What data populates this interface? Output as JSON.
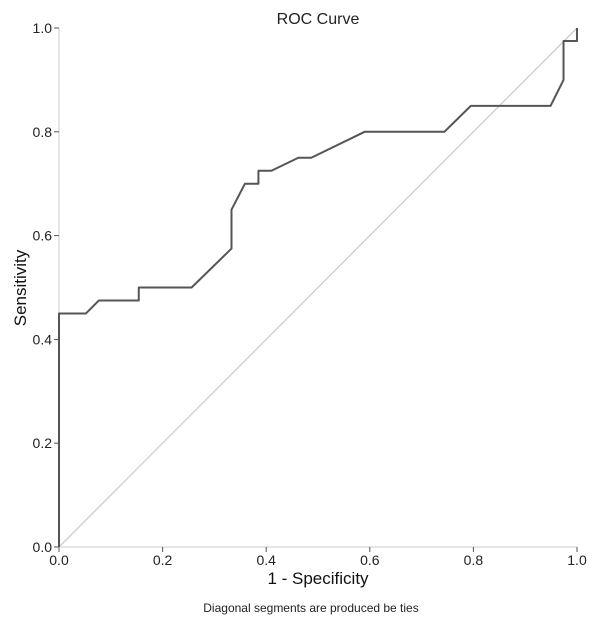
{
  "chart_data": {
    "type": "line",
    "title": "ROC Curve",
    "xlabel": "1 - Specificity",
    "ylabel": "Sensitivity",
    "xlim": [
      0,
      1
    ],
    "ylim": [
      0,
      1
    ],
    "x_ticks": [
      "0.0",
      "0.2",
      "0.4",
      "0.6",
      "0.8",
      "1.0"
    ],
    "y_ticks": [
      "0.0",
      "0.2",
      "0.4",
      "0.6",
      "0.8",
      "1.0"
    ],
    "grid": false,
    "legend": "none",
    "footnote": "Diagonal segments are produced be ties",
    "series": [
      {
        "color": "#555555",
        "x": [
          0.0,
          0.0,
          0.052,
          0.077,
          0.154,
          0.154,
          0.256,
          0.333,
          0.333,
          0.333,
          0.359,
          0.385,
          0.385,
          0.41,
          0.462,
          0.487,
          0.59,
          0.744,
          0.795,
          0.949,
          0.974,
          0.974,
          0.974,
          1.0,
          1.0
        ],
        "y": [
          0.0,
          0.45,
          0.45,
          0.475,
          0.475,
          0.5,
          0.5,
          0.575,
          0.6,
          0.65,
          0.7,
          0.7,
          0.725,
          0.725,
          0.75,
          0.75,
          0.8,
          0.8,
          0.85,
          0.85,
          0.9,
          0.925,
          0.975,
          0.975,
          1.0
        ]
      },
      {
        "color": "#cccccc",
        "x": [
          0,
          1
        ],
        "y": [
          0,
          1
        ]
      }
    ]
  }
}
